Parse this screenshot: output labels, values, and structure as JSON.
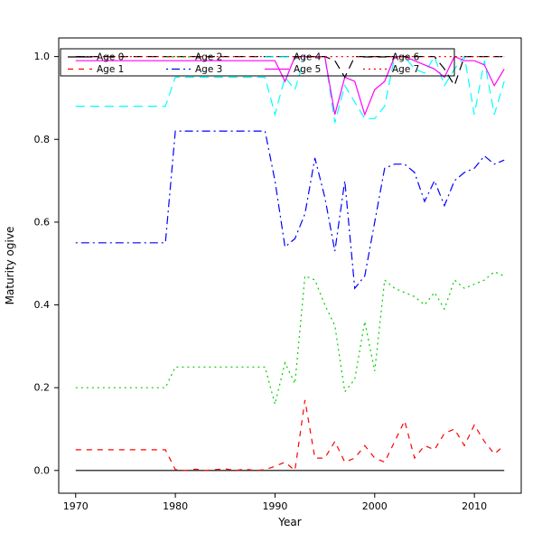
{
  "figure": {
    "background": "#ffffff",
    "border_color": "#000000"
  },
  "chart_data": {
    "type": "line",
    "title": "",
    "xlabel": "Year",
    "ylabel": "Maturity ogive",
    "xlim": [
      1968.3,
      2014.7
    ],
    "ylim": [
      -0.055,
      1.045
    ],
    "x_ticks": [
      1970,
      1980,
      1990,
      2000,
      2010
    ],
    "x_tick_labels": [
      "1970",
      "1980",
      "1990",
      "2000",
      "2010"
    ],
    "y_ticks": [
      0.0,
      0.2,
      0.4,
      0.6,
      0.8,
      1.0
    ],
    "y_tick_labels": [
      "0.0",
      "0.2",
      "0.4",
      "0.6",
      "0.8",
      "1.0"
    ],
    "grid": false,
    "legend_position": "top",
    "legend_ncol": 4,
    "x": [
      1970,
      1971,
      1972,
      1973,
      1974,
      1975,
      1976,
      1977,
      1978,
      1979,
      1980,
      1981,
      1982,
      1983,
      1984,
      1985,
      1986,
      1987,
      1988,
      1989,
      1990,
      1991,
      1992,
      1993,
      1994,
      1995,
      1996,
      1997,
      1998,
      1999,
      2000,
      2001,
      2002,
      2003,
      2004,
      2005,
      2006,
      2007,
      2008,
      2009,
      2010,
      2011,
      2012,
      2013
    ],
    "series": [
      {
        "name": "Age 0",
        "color": "#000000",
        "linetype": "solid",
        "values": [
          0,
          0,
          0,
          0,
          0,
          0,
          0,
          0,
          0,
          0,
          0,
          0,
          0,
          0,
          0,
          0,
          0,
          0,
          0,
          0,
          0,
          0,
          0,
          0,
          0,
          0,
          0,
          0,
          0,
          0,
          0,
          0,
          0,
          0,
          0,
          0,
          0,
          0,
          0,
          0,
          0,
          0,
          0,
          0
        ]
      },
      {
        "name": "Age 1",
        "color": "#ff0000",
        "linetype": "dashed",
        "values": [
          0.05,
          0.05,
          0.05,
          0.05,
          0.05,
          0.05,
          0.05,
          0.05,
          0.05,
          0.05,
          0.002,
          0,
          0.003,
          0,
          0.002,
          0.004,
          0,
          0.003,
          0,
          0.002,
          0.01,
          0.02,
          0,
          0.17,
          0.03,
          0.03,
          0.07,
          0.02,
          0.03,
          0.06,
          0.03,
          0.02,
          0.07,
          0.12,
          0.03,
          0.06,
          0.05,
          0.09,
          0.1,
          0.06,
          0.11,
          0.07,
          0.04,
          0.06
        ]
      },
      {
        "name": "Age 2",
        "color": "#00cd00",
        "linetype": "dotted",
        "values": [
          0.2,
          0.2,
          0.2,
          0.2,
          0.2,
          0.2,
          0.2,
          0.2,
          0.2,
          0.2,
          0.25,
          0.25,
          0.25,
          0.25,
          0.25,
          0.25,
          0.25,
          0.25,
          0.25,
          0.25,
          0.16,
          0.26,
          0.21,
          0.47,
          0.46,
          0.4,
          0.35,
          0.19,
          0.22,
          0.36,
          0.24,
          0.46,
          0.44,
          0.43,
          0.42,
          0.4,
          0.43,
          0.39,
          0.46,
          0.44,
          0.45,
          0.46,
          0.48,
          0.47
        ]
      },
      {
        "name": "Age 3",
        "color": "#0000ff",
        "linetype": "dotdash",
        "values": [
          0.55,
          0.55,
          0.55,
          0.55,
          0.55,
          0.55,
          0.55,
          0.55,
          0.55,
          0.55,
          0.82,
          0.82,
          0.82,
          0.82,
          0.82,
          0.82,
          0.82,
          0.82,
          0.82,
          0.82,
          0.7,
          0.54,
          0.56,
          0.62,
          0.755,
          0.66,
          0.53,
          0.7,
          0.44,
          0.47,
          0.6,
          0.73,
          0.74,
          0.74,
          0.72,
          0.65,
          0.7,
          0.64,
          0.7,
          0.72,
          0.73,
          0.76,
          0.74,
          0.75
        ]
      },
      {
        "name": "Age 4",
        "color": "#00ffff",
        "linetype": "longdash",
        "values": [
          0.88,
          0.88,
          0.88,
          0.88,
          0.88,
          0.88,
          0.88,
          0.88,
          0.88,
          0.88,
          0.95,
          0.95,
          0.95,
          0.95,
          0.95,
          0.95,
          0.95,
          0.95,
          0.95,
          0.95,
          0.86,
          0.95,
          0.92,
          1,
          1,
          1,
          0.84,
          0.93,
          0.89,
          0.85,
          0.85,
          0.88,
          1,
          1,
          0.97,
          0.96,
          1,
          0.93,
          0.97,
          1,
          0.86,
          0.99,
          0.86,
          0.94
        ]
      },
      {
        "name": "Age 5",
        "color": "#ff00ff",
        "linetype": "solid",
        "values": [
          0.99,
          0.99,
          0.99,
          0.99,
          0.99,
          0.99,
          0.99,
          0.99,
          0.99,
          0.99,
          0.99,
          0.99,
          0.99,
          0.99,
          0.99,
          0.99,
          0.99,
          0.99,
          0.99,
          0.99,
          0.99,
          0.94,
          1,
          1,
          1,
          1,
          0.86,
          0.95,
          0.94,
          0.86,
          0.92,
          0.94,
          1,
          1,
          0.99,
          0.98,
          0.97,
          0.95,
          1,
          0.99,
          0.99,
          0.98,
          0.93,
          0.97
        ]
      },
      {
        "name": "Age 6",
        "color": "#000000",
        "linetype": "longdash",
        "values": [
          1,
          1,
          1,
          1,
          1,
          1,
          1,
          1,
          1,
          1,
          1,
          1,
          1,
          1,
          1,
          1,
          1,
          1,
          1,
          1,
          1,
          1,
          1,
          1,
          1,
          1,
          0.99,
          0.95,
          1,
          1,
          1,
          1,
          1,
          1,
          1,
          1,
          1,
          0.97,
          0.93,
          1,
          1,
          1,
          1,
          1
        ]
      },
      {
        "name": "Age 7",
        "color": "#ff0000",
        "linetype": "dotted",
        "values": [
          1,
          1,
          1,
          1,
          1,
          1,
          1,
          1,
          1,
          1,
          1,
          1,
          1,
          1,
          1,
          1,
          1,
          1,
          1,
          1,
          1,
          1,
          1,
          1,
          1,
          1,
          1,
          1,
          1,
          1,
          1,
          1,
          1,
          1,
          1,
          1,
          1,
          1,
          1,
          1,
          1,
          1,
          1,
          1
        ]
      }
    ]
  }
}
